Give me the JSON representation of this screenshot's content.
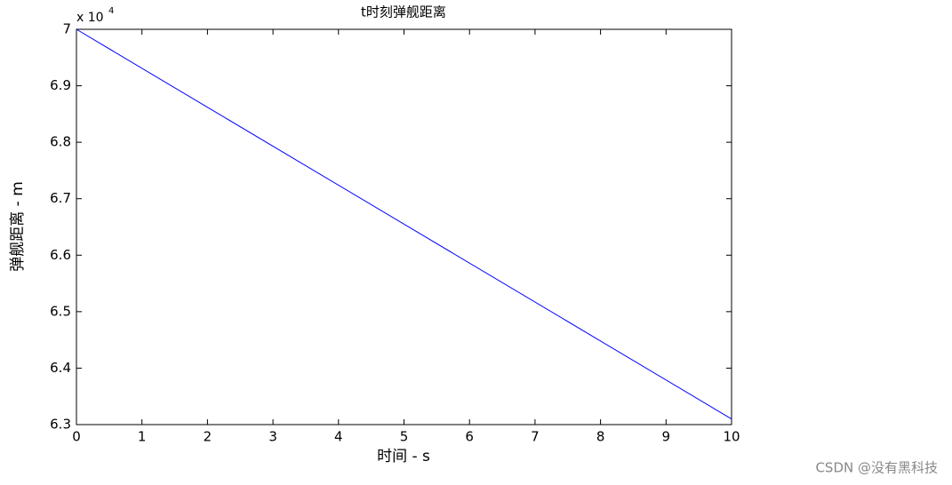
{
  "chart_data": {
    "type": "line",
    "title": "t时刻弹舰距离",
    "x_label": "时间  - s",
    "y_label": "弹舰距离 - m",
    "y_multiplier": "x 10",
    "y_multiplier_exponent": "4",
    "watermark": "CSDN @没有黑科技",
    "x": [
      0,
      10
    ],
    "values": [
      7,
      6.31
    ],
    "color": "#0000ff",
    "xlim": [
      0,
      10
    ],
    "xticks": [
      0,
      1,
      2,
      3,
      4,
      5,
      6,
      7,
      8,
      9,
      10
    ],
    "ylim": [
      6.3,
      7
    ],
    "yticks": [
      6.3,
      6.4,
      6.5,
      6.6,
      6.7,
      6.8,
      6.9,
      7
    ],
    "grid": false
  }
}
